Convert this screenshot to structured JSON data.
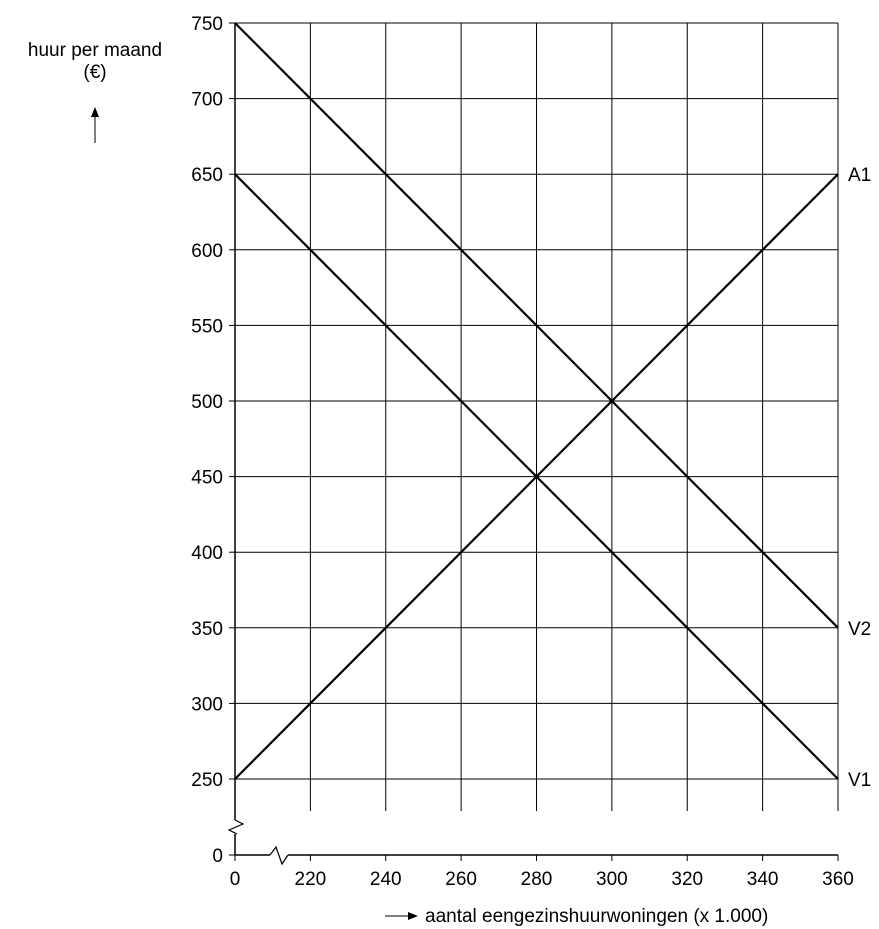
{
  "chart_data": {
    "type": "line",
    "ylabel_line1": "huur per maand",
    "ylabel_line2": "(€)",
    "xlabel": "aantal eengezinshuurwoningen (x 1.000)",
    "x_origin_label": "0",
    "y_origin_label": "0",
    "xlim": [
      200,
      360
    ],
    "ylim": [
      200,
      750
    ],
    "x_ticks": [
      220,
      240,
      260,
      280,
      300,
      320,
      340,
      360
    ],
    "y_ticks": [
      250,
      300,
      350,
      400,
      450,
      500,
      550,
      600,
      650,
      700,
      750
    ],
    "axis_break": true,
    "grid": true,
    "series": [
      {
        "name": "A1",
        "points": [
          [
            200,
            250
          ],
          [
            360,
            650
          ]
        ]
      },
      {
        "name": "V2",
        "points": [
          [
            200,
            750
          ],
          [
            360,
            350
          ]
        ]
      },
      {
        "name": "V1",
        "points": [
          [
            200,
            650
          ],
          [
            360,
            250
          ]
        ]
      }
    ]
  }
}
